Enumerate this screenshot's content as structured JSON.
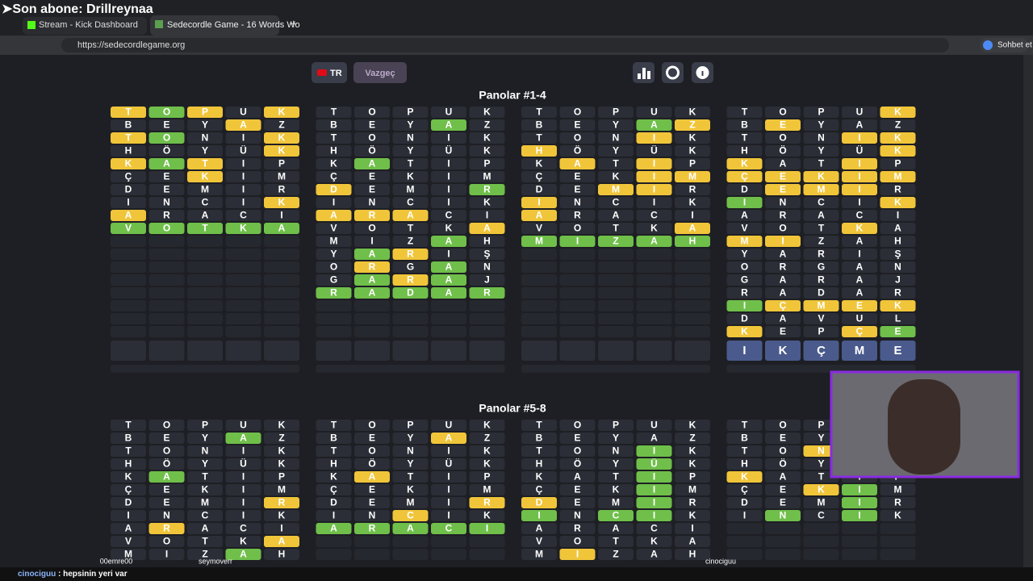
{
  "overlay": {
    "subscriber": "➤Son abone: Drillreynaa"
  },
  "browser": {
    "tabs": [
      "Stream - Kick Dashboard",
      "Sedecordle Game - 16 Words Wo"
    ],
    "url": "https://sedecordlegame.org",
    "chat_button": "Sohbet et"
  },
  "toolbar": {
    "language": "TR",
    "give_up": "Vazgeç"
  },
  "guesses": [
    "TOPUK",
    "BEYAZ",
    "TONIK",
    "HÖYÜK",
    "KATIP",
    "ÇEKIM",
    "DEMIR",
    "INCIK",
    "ARACI",
    "VOTKA",
    "MIZAH",
    "YARIŞ",
    "ORGAN",
    "GARAJ",
    "RADAR",
    "IÇMEK",
    "DAVUL",
    "KEPÇE"
  ],
  "input": "IKÇME",
  "sections": [
    {
      "title": "Panolar #1-4",
      "boards": [
        {
          "states": [
            "ygy.y",
            "...y.",
            "yg..y",
            "....y",
            "ygy..",
            "..y..",
            ".....",
            "....y",
            "y....",
            "ggggg"
          ]
        },
        {
          "states": [
            ".....",
            "...g.",
            ".....",
            ".....",
            ".g...",
            ".....",
            "y...g",
            ".....",
            "yyy..",
            "....y",
            "...g.",
            ".gy..",
            ".y.g.",
            ".gyg.",
            "ggggg"
          ]
        },
        {
          "states": [
            ".....",
            "...gy",
            "...y.",
            "y....",
            ".y.y.",
            "...yy",
            "..yy.",
            "y....",
            "y....",
            "....y",
            "ggggg"
          ]
        },
        {
          "states": [
            "....y",
            ".y...",
            "...yy",
            "....y",
            "y..y.",
            "yyyyy",
            ".yyy.",
            "g...y",
            ".....",
            "...y.",
            "yy...",
            ".....",
            ".....",
            ".....",
            ".....",
            "gyyyy",
            ".....",
            "y..yg"
          ]
        }
      ]
    },
    {
      "title": "Panolar #5-8",
      "boards": [
        {
          "states": [
            ".....",
            "...g.",
            ".....",
            ".....",
            ".g...",
            ".....",
            "....y",
            ".....",
            ".y...",
            "....y",
            "...g."
          ]
        },
        {
          "states": [
            ".....",
            "...y.",
            ".....",
            ".....",
            ".y...",
            ".....",
            "....y",
            "..y..",
            "ggggg"
          ]
        },
        {
          "states": [
            ".....",
            ".....",
            "...g.",
            "...g.",
            "...g.",
            "...g.",
            "y..g.",
            "g.gg.",
            ".....",
            ".....",
            ".y..."
          ]
        },
        {
          "states": [
            ".....",
            ".....",
            "..y..",
            ".....",
            "y....",
            "..yg.",
            "...g.",
            ".g.g."
          ]
        }
      ]
    }
  ],
  "viewers": [
    "00emre00",
    "seymoverr",
    "cinociguu"
  ],
  "chat": {
    "user": "cinociguu",
    "message": " : hepsinin yeri var"
  }
}
